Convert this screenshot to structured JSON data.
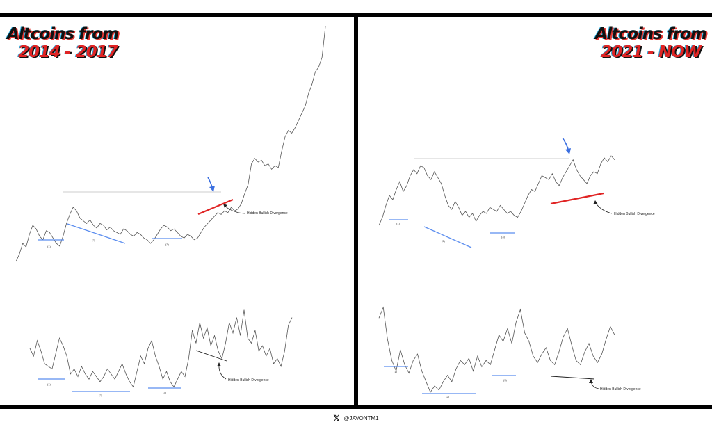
{
  "left_panel": {
    "title_line1": "Altcoins from",
    "title_line2": "2014 - 2017",
    "annotation": "Hidden Bullish Divergence",
    "price_markers": [
      "(1)",
      "(2)",
      "(3)"
    ],
    "osc_markers": [
      "(1)",
      "(2)",
      "(3)"
    ]
  },
  "right_panel": {
    "title_line1": "Altcoins from",
    "title_line2": "2021 - NOW",
    "annotation": "Hidden Bullish Divergence",
    "price_markers": [
      "(1)",
      "(2)",
      "(3)"
    ],
    "osc_markers": [
      "(1)",
      "(2)",
      "(3)"
    ]
  },
  "footer": {
    "handle": "@JAVONTM1",
    "icon": "x-logo-icon"
  },
  "colors": {
    "price_line": "#555555",
    "support_line": "#5b8def",
    "divergence_line": "#e02424",
    "arrow": "#3b6fe0",
    "resistance_line": "#e6e6e6"
  },
  "chart_data": [
    {
      "type": "line",
      "title": "Altcoins from 2014 - 2017",
      "series": [
        {
          "values": [
            0.1,
            0.18,
            0.3,
            0.26,
            0.4,
            0.5,
            0.46,
            0.38,
            0.34,
            0.44,
            0.42,
            0.36,
            0.3,
            0.27,
            0.38,
            0.52,
            0.62,
            0.7,
            0.66,
            0.58,
            0.55,
            0.52,
            0.56,
            0.5,
            0.47,
            0.52,
            0.5,
            0.45,
            0.48,
            0.44,
            0.42,
            0.4,
            0.46,
            0.44,
            0.4,
            0.38,
            0.42,
            0.4,
            0.36,
            0.34,
            0.3,
            0.34,
            0.4,
            0.46,
            0.5,
            0.48,
            0.44,
            0.46,
            0.42,
            0.38,
            0.36,
            0.4,
            0.38,
            0.34,
            0.36,
            0.42,
            0.48,
            0.52,
            0.56,
            0.6,
            0.64,
            0.62,
            0.66,
            0.64,
            0.7,
            0.66,
            0.68,
            0.74,
            0.85,
            0.95,
            1.18,
            1.24,
            1.2,
            1.22,
            1.16,
            1.18,
            1.12,
            1.16,
            1.14,
            1.32,
            1.48,
            1.55,
            1.52,
            1.58,
            1.66,
            1.74,
            1.82,
            1.96,
            2.06,
            2.2,
            2.25,
            2.36,
            2.7
          ]
        },
        {
          "values": [
            0.42,
            0.36,
            0.48,
            0.4,
            0.3,
            0.28,
            0.26,
            0.38,
            0.5,
            0.44,
            0.36,
            0.22,
            0.26,
            0.2,
            0.28,
            0.22,
            0.18,
            0.24,
            0.2,
            0.16,
            0.2,
            0.26,
            0.22,
            0.18,
            0.24,
            0.3,
            0.22,
            0.16,
            0.12,
            0.24,
            0.36,
            0.3,
            0.42,
            0.48,
            0.36,
            0.28,
            0.18,
            0.24,
            0.16,
            0.12,
            0.18,
            0.24,
            0.2,
            0.34,
            0.56,
            0.46,
            0.62,
            0.5,
            0.58,
            0.44,
            0.52,
            0.4,
            0.34,
            0.46,
            0.62,
            0.54,
            0.66,
            0.52,
            0.72,
            0.5,
            0.46,
            0.56,
            0.4,
            0.44,
            0.36,
            0.42,
            0.3,
            0.34,
            0.28,
            0.4,
            0.6,
            0.66
          ]
        }
      ]
    },
    {
      "type": "line",
      "title": "Altcoins from 2021 - NOW",
      "series": [
        {
          "values": [
            0.1,
            0.18,
            0.3,
            0.4,
            0.36,
            0.46,
            0.54,
            0.44,
            0.5,
            0.6,
            0.66,
            0.62,
            0.7,
            0.68,
            0.6,
            0.56,
            0.64,
            0.58,
            0.52,
            0.4,
            0.3,
            0.26,
            0.34,
            0.28,
            0.2,
            0.24,
            0.18,
            0.22,
            0.14,
            0.2,
            0.24,
            0.22,
            0.28,
            0.26,
            0.24,
            0.3,
            0.26,
            0.22,
            0.24,
            0.2,
            0.18,
            0.24,
            0.32,
            0.4,
            0.46,
            0.44,
            0.52,
            0.6,
            0.58,
            0.56,
            0.62,
            0.54,
            0.5,
            0.58,
            0.64,
            0.7,
            0.76,
            0.66,
            0.6,
            0.56,
            0.52,
            0.6,
            0.64,
            0.62,
            0.72,
            0.78,
            0.74,
            0.8,
            0.76
          ]
        },
        {
          "values": [
            0.8,
            0.9,
            0.6,
            0.4,
            0.3,
            0.5,
            0.36,
            0.28,
            0.4,
            0.46,
            0.3,
            0.2,
            0.1,
            0.16,
            0.12,
            0.2,
            0.26,
            0.2,
            0.32,
            0.4,
            0.36,
            0.42,
            0.3,
            0.44,
            0.34,
            0.4,
            0.36,
            0.5,
            0.64,
            0.58,
            0.7,
            0.56,
            0.76,
            0.88,
            0.66,
            0.58,
            0.44,
            0.38,
            0.46,
            0.52,
            0.4,
            0.36,
            0.48,
            0.62,
            0.7,
            0.54,
            0.4,
            0.36,
            0.48,
            0.56,
            0.44,
            0.38,
            0.46,
            0.6,
            0.72,
            0.64
          ]
        }
      ]
    }
  ]
}
